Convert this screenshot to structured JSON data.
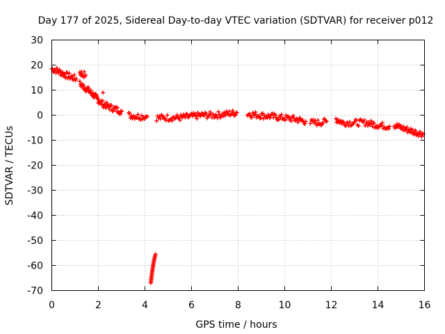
{
  "chart_data": {
    "type": "scatter",
    "title": "Day 177 of 2025, Sidereal Day-to-day VTEC variation (SDTVAR) for receiver p012",
    "xlabel": "GPS time / hours",
    "ylabel": "SDTVAR / TECUs",
    "xlim": [
      0,
      16
    ],
    "ylim": [
      -70,
      30
    ],
    "xticks": [
      0,
      2,
      4,
      6,
      8,
      10,
      12,
      14,
      16
    ],
    "yticks": [
      30,
      20,
      10,
      0,
      -10,
      -20,
      -30,
      -40,
      -50,
      -60,
      -70
    ],
    "grid": true,
    "marker": "+",
    "color": "#ff0000",
    "series": [
      {
        "name": "main trace",
        "segments": [
          [
            [
              0.0,
              18.5
            ],
            [
              0.3,
              17.5
            ],
            [
              0.6,
              16.0
            ],
            [
              0.9,
              15.0
            ],
            [
              1.05,
              14.5
            ]
          ],
          [
            [
              1.2,
              17.0
            ],
            [
              1.3,
              16.5
            ],
            [
              1.45,
              16.0
            ]
          ],
          [
            [
              1.2,
              12.5
            ],
            [
              1.5,
              10.5
            ],
            [
              1.8,
              8.0
            ],
            [
              2.1,
              5.0
            ],
            [
              2.4,
              3.5
            ],
            [
              2.7,
              2.5
            ],
            [
              3.0,
              1.5
            ]
          ],
          [
            [
              2.2,
              9.0
            ]
          ],
          [
            [
              3.3,
              0.0
            ],
            [
              3.7,
              -0.5
            ],
            [
              4.1,
              -0.5
            ]
          ],
          [
            [
              4.5,
              -1.0
            ],
            [
              5.0,
              -1.0
            ],
            [
              5.5,
              -1.0
            ],
            [
              6.0,
              -0.5
            ],
            [
              6.5,
              0.0
            ],
            [
              7.0,
              0.0
            ],
            [
              7.5,
              0.5
            ],
            [
              7.95,
              1.0
            ]
          ],
          [
            [
              8.4,
              0.5
            ],
            [
              8.9,
              0.0
            ],
            [
              9.4,
              -0.5
            ],
            [
              9.9,
              -1.0
            ],
            [
              10.4,
              -1.5
            ],
            [
              10.9,
              -2.5
            ]
          ],
          [
            [
              11.1,
              -3.0
            ],
            [
              11.5,
              -3.0
            ],
            [
              11.8,
              -2.5
            ]
          ],
          [
            [
              12.2,
              -1.5
            ],
            [
              12.5,
              -3.0
            ],
            [
              13.0,
              -3.0
            ],
            [
              13.5,
              -3.0
            ],
            [
              14.0,
              -4.0
            ],
            [
              14.5,
              -4.5
            ]
          ],
          [
            [
              14.7,
              -4.0
            ],
            [
              15.0,
              -5.0
            ],
            [
              15.5,
              -6.5
            ],
            [
              15.95,
              -7.5
            ]
          ]
        ]
      },
      {
        "name": "outlier trace",
        "segments": [
          [
            [
              4.25,
              -67.0
            ],
            [
              4.3,
              -63.0
            ],
            [
              4.35,
              -60.0
            ],
            [
              4.4,
              -57.5
            ],
            [
              4.45,
              -55.5
            ]
          ]
        ]
      }
    ]
  }
}
